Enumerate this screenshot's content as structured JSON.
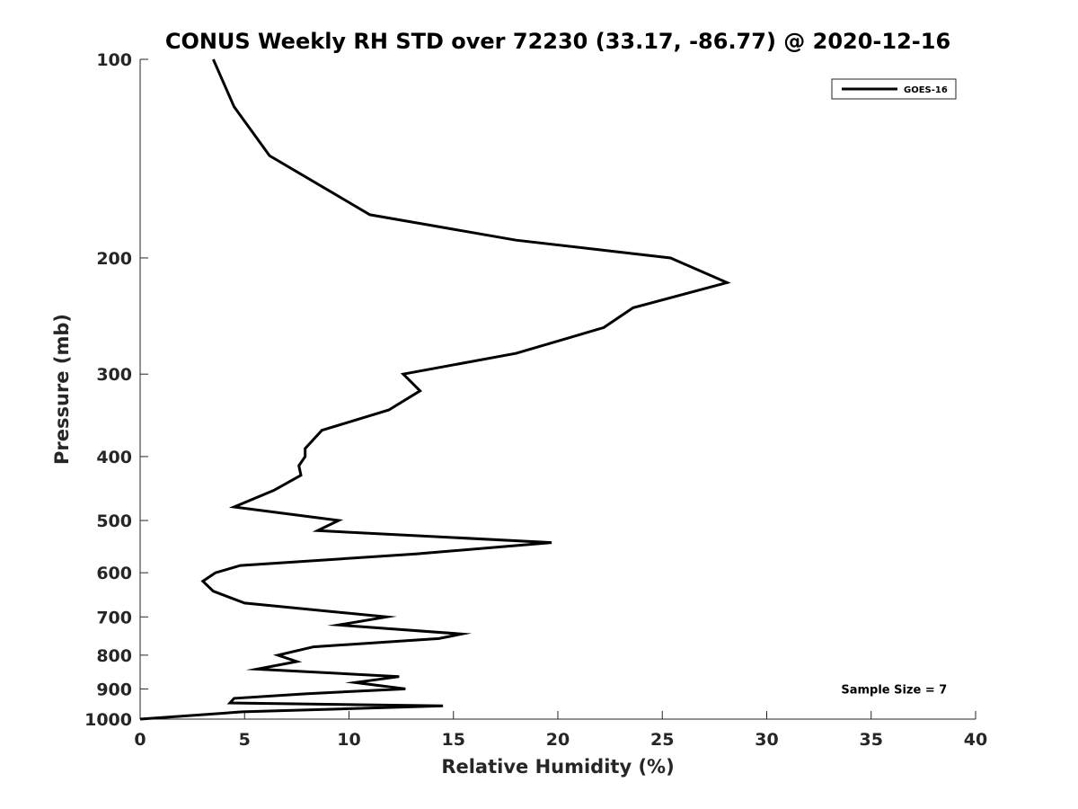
{
  "chart_data": {
    "type": "line",
    "title": "CONUS Weekly RH STD over 72230 (33.17, -86.77) @ 2020-12-16",
    "xlabel": "Relative Humidity (%)",
    "ylabel": "Pressure (mb)",
    "xlim": [
      0,
      40
    ],
    "ylim": [
      100,
      1000
    ],
    "yscale": "log",
    "yreversed": true,
    "grid": false,
    "legend_position": "top-right",
    "xticks": [
      0,
      5,
      10,
      15,
      20,
      25,
      30,
      35,
      40
    ],
    "xtick_labels": [
      "0",
      "5",
      "10",
      "15",
      "20",
      "25",
      "30",
      "35",
      "40"
    ],
    "yticks": [
      100,
      200,
      300,
      400,
      500,
      600,
      700,
      800,
      900,
      1000
    ],
    "ytick_labels": [
      "100",
      "200",
      "300",
      "400",
      "500",
      "600",
      "700",
      "800",
      "900",
      "1000"
    ],
    "series": [
      {
        "name": "GOES-16",
        "color": "#000000",
        "x": [
          3.5,
          4.5,
          6.2,
          11.0,
          18.0,
          25.4,
          28.1,
          23.6,
          22.2,
          18.0,
          12.6,
          13.4,
          11.9,
          8.7,
          7.9,
          7.9,
          7.6,
          7.7,
          6.4,
          4.5,
          9.5,
          8.5,
          19.7,
          13.2,
          4.8,
          3.6,
          3.0,
          3.5,
          5.0,
          11.8,
          9.5,
          15.4,
          14.3,
          8.3,
          6.6,
          7.5,
          5.6,
          12.4,
          10.3,
          12.7,
          8.0,
          4.5,
          4.3,
          14.5,
          4.9,
          0.0
        ],
        "y": [
          100,
          118,
          140,
          172,
          188,
          200,
          218,
          238,
          255,
          279,
          300,
          318,
          340,
          365,
          389,
          400,
          413,
          427,
          450,
          477,
          500,
          518,
          540,
          562,
          585,
          600,
          618,
          640,
          667,
          700,
          720,
          743,
          755,
          777,
          800,
          818,
          840,
          862,
          880,
          900,
          915,
          930,
          945,
          955,
          975,
          1000
        ]
      }
    ],
    "annotations": [
      {
        "text": "Sample Size = 7",
        "x": 36.1,
        "y": 900
      }
    ]
  }
}
